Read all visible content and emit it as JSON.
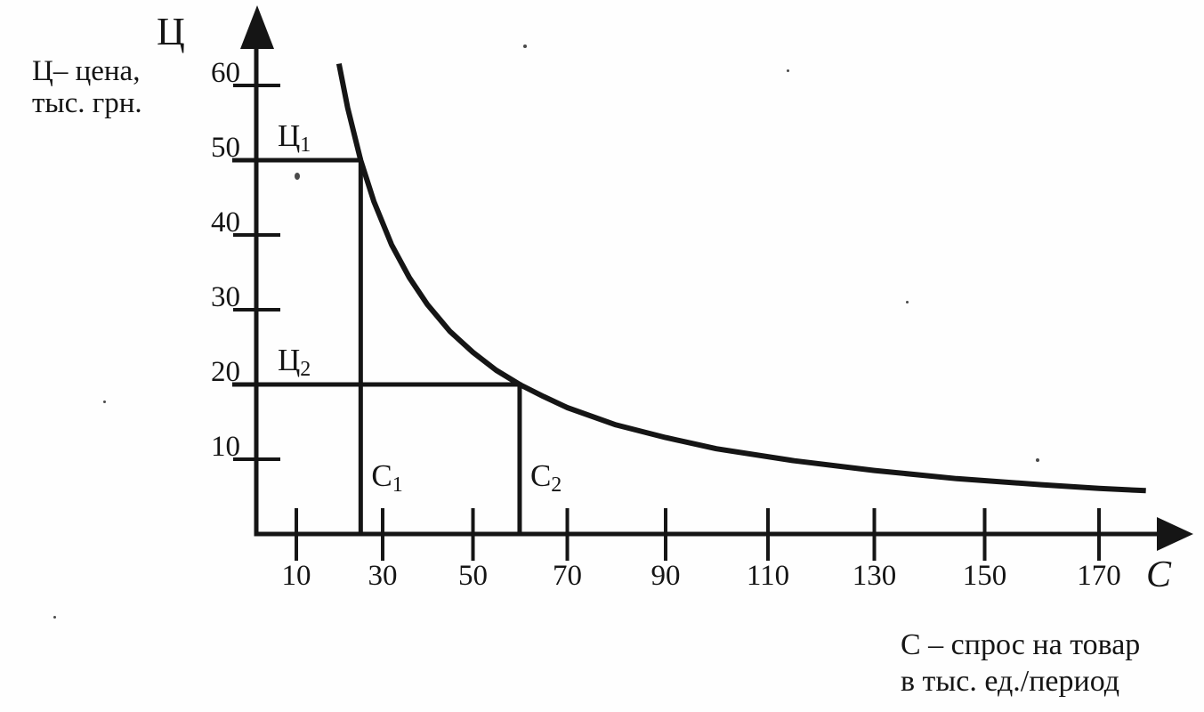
{
  "page": {
    "background": "#fefefe",
    "ink": "#151515"
  },
  "captions": {
    "y_axis_note_line1": "Ц– цена,",
    "y_axis_note_line2": "тыс. грн.",
    "x_axis_note_line1": "С – спрос на товар",
    "x_axis_note_line2": "в тыс. ед./период"
  },
  "chart_data": {
    "type": "line",
    "title": "",
    "grid": false,
    "legend": false,
    "x_axis": {
      "letter": "С",
      "description": "спрос на товар в тыс. ед./период",
      "ticks": [
        10,
        30,
        50,
        70,
        90,
        110,
        130,
        150,
        170
      ],
      "range": [
        0,
        180
      ]
    },
    "y_axis": {
      "letter": "Ц",
      "description": "цена, тыс. грн.",
      "ticks": [
        10,
        20,
        30,
        40,
        50,
        60
      ],
      "range": [
        0,
        65
      ]
    },
    "series": [
      {
        "name": "demand-curve",
        "points": [
          [
            20,
            62.9
          ],
          [
            22,
            57.0
          ],
          [
            25,
            50.0
          ],
          [
            28,
            44.5
          ],
          [
            32,
            38.7
          ],
          [
            36,
            34.3
          ],
          [
            40,
            30.7
          ],
          [
            45,
            27.1
          ],
          [
            50,
            24.3
          ],
          [
            55,
            21.9
          ],
          [
            60,
            20.0
          ],
          [
            65,
            18.4
          ],
          [
            70,
            16.9
          ],
          [
            80,
            14.6
          ],
          [
            90,
            12.9
          ],
          [
            100,
            11.4
          ],
          [
            115,
            9.8
          ],
          [
            130,
            8.5
          ],
          [
            145,
            7.4
          ],
          [
            160,
            6.6
          ],
          [
            170,
            6.1
          ],
          [
            178,
            5.8
          ]
        ]
      }
    ],
    "marked_points": [
      {
        "demand": 25,
        "price": 50,
        "price_label": {
          "text": "Ц",
          "sub": "1"
        },
        "demand_label": {
          "text": "С",
          "sub": "1"
        }
      },
      {
        "demand": 60,
        "price": 20,
        "price_label": {
          "text": "Ц",
          "sub": "2"
        },
        "demand_label": {
          "text": "С",
          "sub": "2"
        }
      }
    ]
  }
}
